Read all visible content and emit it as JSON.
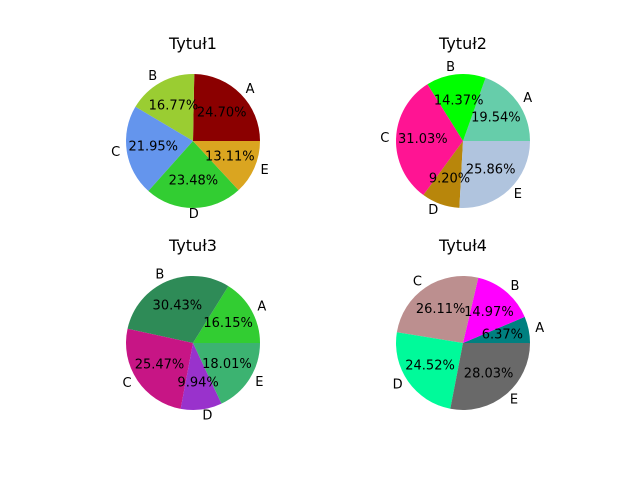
{
  "chart_data": [
    {
      "type": "pie",
      "title": "Tytuł1",
      "labels": [
        "A",
        "B",
        "C",
        "D",
        "E"
      ],
      "values": [
        24.7,
        16.77,
        21.95,
        23.48,
        13.11
      ],
      "pct_labels": [
        "24.70%",
        "16.77%",
        "21.95%",
        "23.48%",
        "13.11%"
      ],
      "colors": [
        "#8b0000",
        "#9acd32",
        "#6495ed",
        "#32cd32",
        "#daa520"
      ]
    },
    {
      "type": "pie",
      "title": "Tytuł2",
      "labels": [
        "A",
        "B",
        "C",
        "D",
        "E"
      ],
      "values": [
        19.54,
        14.37,
        31.03,
        9.2,
        25.86
      ],
      "pct_labels": [
        "19.54%",
        "14.37%",
        "31.03%",
        "9.20%",
        "25.86%"
      ],
      "colors": [
        "#66cdaa",
        "#00ff00",
        "#ff1493",
        "#b8860b",
        "#b0c4de"
      ]
    },
    {
      "type": "pie",
      "title": "Tytuł3",
      "labels": [
        "A",
        "B",
        "C",
        "D",
        "E"
      ],
      "values": [
        16.15,
        30.43,
        25.47,
        9.94,
        18.01
      ],
      "pct_labels": [
        "16.15%",
        "30.43%",
        "25.47%",
        "9.94%",
        "18.01%"
      ],
      "colors": [
        "#32cd32",
        "#2e8b57",
        "#c71585",
        "#9932cc",
        "#3cb371"
      ]
    },
    {
      "type": "pie",
      "title": "Tytuł4",
      "labels": [
        "A",
        "B",
        "C",
        "D",
        "E"
      ],
      "values": [
        6.37,
        14.97,
        26.11,
        24.52,
        28.03
      ],
      "pct_labels": [
        "6.37%",
        "14.97%",
        "26.11%",
        "24.52%",
        "28.03%"
      ],
      "colors": [
        "#008080",
        "#ff00ff",
        "#bc8f8f",
        "#00fa9a",
        "#696969"
      ]
    }
  ]
}
